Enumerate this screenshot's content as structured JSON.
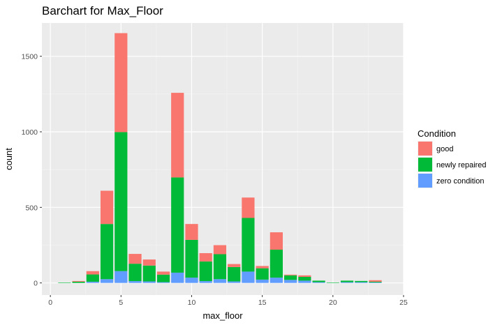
{
  "chart_data": {
    "type": "bar",
    "stacked": true,
    "title": "Barchart for Max_Floor",
    "xlabel": "max_floor",
    "ylabel": "count",
    "xlim": [
      -0.6,
      25.0
    ],
    "ylim": [
      -80,
      1720
    ],
    "xticks": [
      0,
      5,
      10,
      15,
      20,
      25
    ],
    "yticks": [
      0,
      500,
      1000,
      1500
    ],
    "grid": true,
    "legend": {
      "title": "Condition",
      "position": "right"
    },
    "x": [
      1,
      2,
      3,
      4,
      5,
      6,
      7,
      8,
      9,
      10,
      11,
      12,
      13,
      14,
      15,
      16,
      17,
      18,
      19,
      20,
      21,
      22,
      23
    ],
    "series": [
      {
        "name": "zero condition",
        "color": "#619CFF",
        "values": [
          0,
          0,
          8,
          25,
          78,
          12,
          10,
          5,
          68,
          35,
          12,
          25,
          10,
          75,
          22,
          35,
          20,
          15,
          5,
          0,
          5,
          5,
          3
        ]
      },
      {
        "name": "newly repaired",
        "color": "#00BA38",
        "values": [
          3,
          8,
          48,
          365,
          920,
          115,
          105,
          50,
          630,
          250,
          130,
          165,
          95,
          355,
          75,
          185,
          30,
          25,
          10,
          3,
          10,
          8,
          5
        ]
      },
      {
        "name": "good",
        "color": "#F8766D",
        "values": [
          0,
          5,
          22,
          220,
          655,
          65,
          40,
          20,
          560,
          105,
          55,
          60,
          20,
          135,
          15,
          115,
          5,
          10,
          0,
          0,
          0,
          0,
          10
        ]
      }
    ]
  }
}
